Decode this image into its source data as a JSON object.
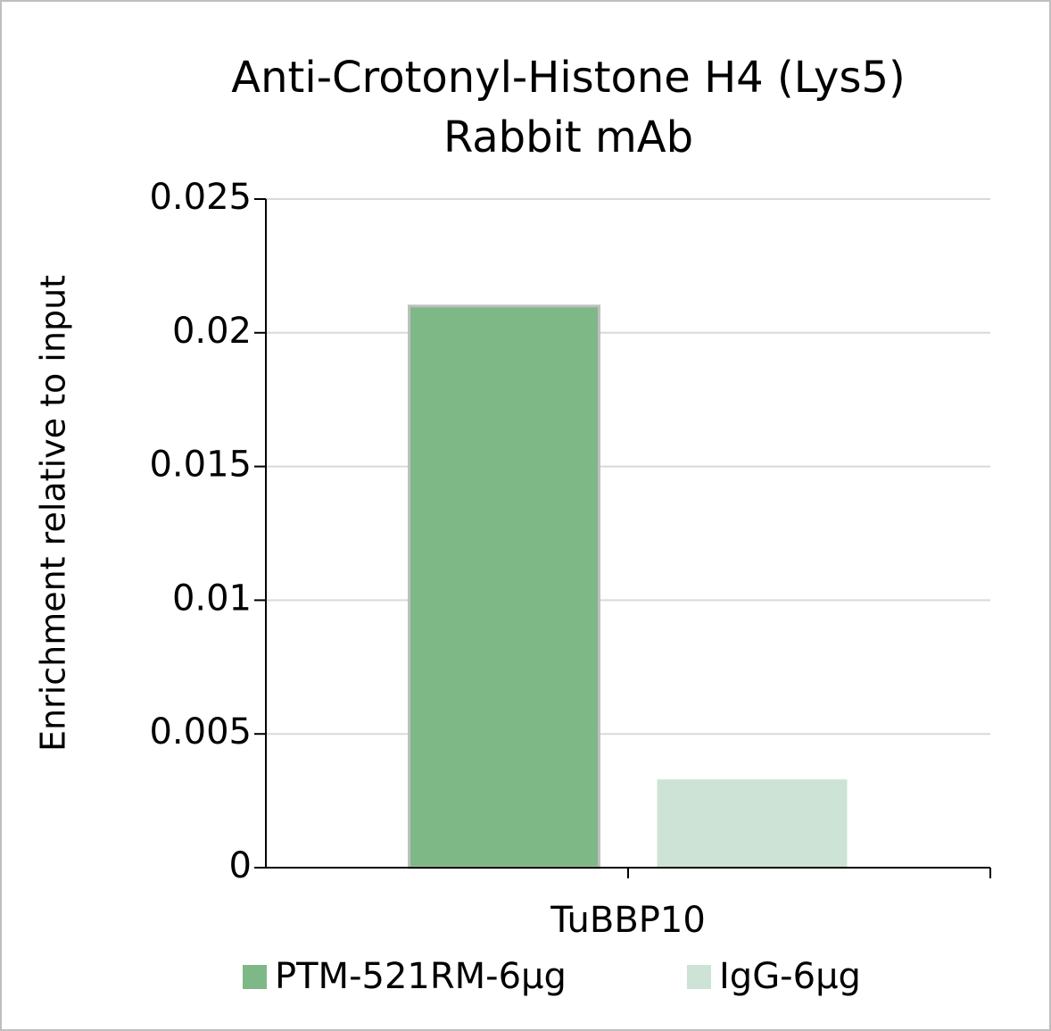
{
  "chart_data": {
    "type": "bar",
    "title": [
      "Anti-Crotonyl-Histone H4 (Lys5)",
      "Rabbit mAb"
    ],
    "y_label": "Enrichment relative to input",
    "categories": [
      "TuBBP10"
    ],
    "series": [
      {
        "name": "PTM-521RM-6μg",
        "color": "#7fb887",
        "values": [
          0.021
        ]
      },
      {
        "name": "IgG-6μg",
        "color": "#cde3d5",
        "values": [
          0.0033
        ]
      }
    ],
    "ylim": [
      0,
      0.025
    ],
    "yticks": [
      0,
      0.005,
      0.01,
      0.015,
      0.02,
      0.025
    ],
    "grid": true,
    "legend": "bottom"
  }
}
